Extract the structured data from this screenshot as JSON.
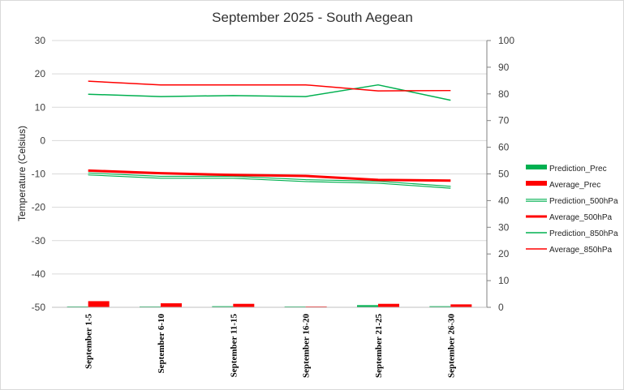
{
  "chart_data": {
    "type": "line",
    "title": "September 2025 - South Aegean",
    "ylabel": "Temperature (Celsius)",
    "y2label": "",
    "ylim": [
      -50,
      30
    ],
    "y2lim": [
      0,
      100
    ],
    "yticks": [
      "30",
      "20",
      "10",
      "0",
      "-10",
      "-20",
      "-30",
      "-40",
      "-50"
    ],
    "y2ticks": [
      "100",
      "90",
      "80",
      "70",
      "60",
      "50",
      "40",
      "30",
      "20",
      "10",
      "0"
    ],
    "categories": [
      "September 1-5",
      "September 6-10",
      "September 11-15",
      "September 16-20",
      "September 21-25",
      "September 26-30"
    ],
    "legend_position": "right",
    "series": [
      {
        "name": "Prediction_Prec",
        "type": "bar",
        "axis": "secondary",
        "color": "#00b050",
        "values": [
          0.2,
          0.2,
          0.4,
          0.2,
          0.8,
          0.4
        ]
      },
      {
        "name": "Average_Prec",
        "type": "bar",
        "axis": "secondary",
        "color": "#ff0000",
        "values": [
          2.3,
          1.5,
          1.3,
          0.3,
          1.3,
          1.1
        ]
      },
      {
        "name": "Prediction_500hPa",
        "type": "line",
        "style": "double",
        "axis": "primary",
        "color": "#00b050",
        "values": [
          -10.0,
          -11.0,
          -11.0,
          -12.0,
          -12.5,
          -14.0
        ]
      },
      {
        "name": "Average_500hPa",
        "type": "line",
        "style": "thick",
        "axis": "primary",
        "color": "#ff0000",
        "values": [
          -9.0,
          -9.8,
          -10.3,
          -10.6,
          -11.8,
          -12.0
        ]
      },
      {
        "name": "Prediction_850hPa",
        "type": "line",
        "style": "thin",
        "axis": "primary",
        "color": "#00b050",
        "values": [
          13.9,
          13.2,
          13.5,
          13.2,
          16.7,
          12.1
        ]
      },
      {
        "name": "Average_850hPa",
        "type": "line",
        "style": "thin",
        "axis": "primary",
        "color": "#ff0000",
        "values": [
          17.8,
          16.7,
          16.7,
          16.7,
          14.9,
          15.0
        ]
      }
    ]
  }
}
